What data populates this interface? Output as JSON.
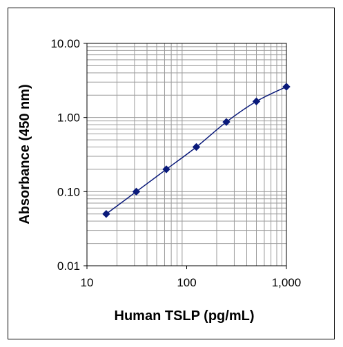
{
  "chart_data": {
    "type": "line",
    "title": "",
    "xlabel": "Human TSLP (pg/mL)",
    "ylabel": "Absorbance (450 nm)",
    "x_scale": "log",
    "y_scale": "log",
    "xlim": [
      10,
      1000
    ],
    "ylim": [
      0.01,
      10
    ],
    "x_ticks": [
      10,
      100,
      1000
    ],
    "x_tick_labels": [
      "10",
      "100",
      "1,000"
    ],
    "y_ticks": [
      0.01,
      0.1,
      1,
      10
    ],
    "y_tick_labels": [
      "0.01",
      "0.10",
      "1.00",
      "10.00"
    ],
    "grid": true,
    "legend": "none",
    "series": [
      {
        "x": [
          15.6,
          31.25,
          62.5,
          125,
          250,
          500,
          1000
        ],
        "y": [
          0.05,
          0.1,
          0.2,
          0.4,
          0.87,
          1.65,
          2.6
        ],
        "color": "#0a1a7a",
        "marker": "diamond"
      }
    ],
    "colors": {
      "grid": "#9a9a9a",
      "axis": "#000000",
      "series": "#0a1a7a"
    }
  }
}
